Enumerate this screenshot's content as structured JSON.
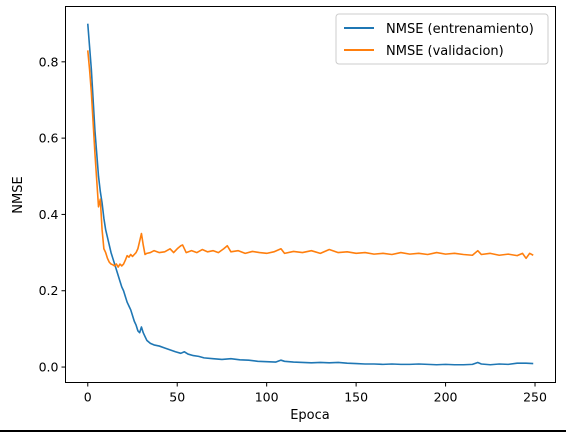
{
  "chart_data": {
    "type": "line",
    "title": "",
    "xlabel": "Epoca",
    "ylabel": "NMSE",
    "xlim": [
      -12.45,
      261.45
    ],
    "ylim": [
      -0.0405,
      0.945
    ],
    "xticks": [
      0,
      50,
      100,
      150,
      200,
      250
    ],
    "xtick_labels": [
      "0",
      "50",
      "100",
      "150",
      "200",
      "250"
    ],
    "yticks": [
      0.0,
      0.2,
      0.4,
      0.6,
      0.8
    ],
    "ytick_labels": [
      "0.0",
      "0.2",
      "0.4",
      "0.6",
      "0.8"
    ],
    "grid": false,
    "legend_position": "top-right",
    "series": [
      {
        "name": "NMSE (entrenamiento)",
        "color": "#1f77b4",
        "points": [
          [
            0,
            0.9
          ],
          [
            1,
            0.84
          ],
          [
            2,
            0.78
          ],
          [
            3,
            0.7
          ],
          [
            4,
            0.62
          ],
          [
            5,
            0.56
          ],
          [
            6,
            0.5
          ],
          [
            7,
            0.46
          ],
          [
            8,
            0.43
          ],
          [
            9,
            0.39
          ],
          [
            10,
            0.36
          ],
          [
            11,
            0.34
          ],
          [
            12,
            0.32
          ],
          [
            13,
            0.3
          ],
          [
            14,
            0.285
          ],
          [
            15,
            0.27
          ],
          [
            16,
            0.255
          ],
          [
            17,
            0.24
          ],
          [
            18,
            0.225
          ],
          [
            19,
            0.21
          ],
          [
            20,
            0.2
          ],
          [
            21,
            0.185
          ],
          [
            22,
            0.17
          ],
          [
            23,
            0.16
          ],
          [
            24,
            0.15
          ],
          [
            25,
            0.135
          ],
          [
            26,
            0.12
          ],
          [
            27,
            0.11
          ],
          [
            28,
            0.095
          ],
          [
            29,
            0.09
          ],
          [
            30,
            0.105
          ],
          [
            31,
            0.09
          ],
          [
            32,
            0.08
          ],
          [
            33,
            0.07
          ],
          [
            35,
            0.062
          ],
          [
            37,
            0.058
          ],
          [
            40,
            0.055
          ],
          [
            43,
            0.05
          ],
          [
            46,
            0.045
          ],
          [
            49,
            0.04
          ],
          [
            52,
            0.036
          ],
          [
            54,
            0.04
          ],
          [
            56,
            0.034
          ],
          [
            59,
            0.03
          ],
          [
            62,
            0.028
          ],
          [
            65,
            0.024
          ],
          [
            70,
            0.022
          ],
          [
            75,
            0.02
          ],
          [
            80,
            0.022
          ],
          [
            85,
            0.019
          ],
          [
            90,
            0.018
          ],
          [
            95,
            0.015
          ],
          [
            100,
            0.014
          ],
          [
            105,
            0.013
          ],
          [
            108,
            0.018
          ],
          [
            110,
            0.015
          ],
          [
            115,
            0.013
          ],
          [
            120,
            0.012
          ],
          [
            125,
            0.011
          ],
          [
            130,
            0.012
          ],
          [
            135,
            0.011
          ],
          [
            140,
            0.012
          ],
          [
            145,
            0.01
          ],
          [
            150,
            0.009
          ],
          [
            155,
            0.008
          ],
          [
            160,
            0.008
          ],
          [
            165,
            0.007
          ],
          [
            170,
            0.008
          ],
          [
            175,
            0.007
          ],
          [
            180,
            0.007
          ],
          [
            185,
            0.008
          ],
          [
            190,
            0.007
          ],
          [
            195,
            0.006
          ],
          [
            200,
            0.007
          ],
          [
            205,
            0.006
          ],
          [
            210,
            0.006
          ],
          [
            215,
            0.007
          ],
          [
            218,
            0.012
          ],
          [
            220,
            0.008
          ],
          [
            225,
            0.006
          ],
          [
            230,
            0.008
          ],
          [
            235,
            0.007
          ],
          [
            240,
            0.01
          ],
          [
            245,
            0.01
          ],
          [
            249,
            0.009
          ]
        ]
      },
      {
        "name": "NMSE (validacion)",
        "color": "#ff7f0e",
        "points": [
          [
            0,
            0.83
          ],
          [
            1,
            0.78
          ],
          [
            2,
            0.72
          ],
          [
            3,
            0.64
          ],
          [
            4,
            0.56
          ],
          [
            5,
            0.49
          ],
          [
            6,
            0.42
          ],
          [
            7,
            0.44
          ],
          [
            8,
            0.36
          ],
          [
            9,
            0.31
          ],
          [
            10,
            0.3
          ],
          [
            11,
            0.285
          ],
          [
            12,
            0.275
          ],
          [
            13,
            0.27
          ],
          [
            14,
            0.268
          ],
          [
            15,
            0.265
          ],
          [
            16,
            0.27
          ],
          [
            17,
            0.262
          ],
          [
            18,
            0.27
          ],
          [
            19,
            0.265
          ],
          [
            20,
            0.27
          ],
          [
            21,
            0.28
          ],
          [
            22,
            0.292
          ],
          [
            23,
            0.288
          ],
          [
            24,
            0.295
          ],
          [
            25,
            0.29
          ],
          [
            26,
            0.295
          ],
          [
            27,
            0.3
          ],
          [
            28,
            0.31
          ],
          [
            29,
            0.33
          ],
          [
            30,
            0.35
          ],
          [
            31,
            0.32
          ],
          [
            32,
            0.295
          ],
          [
            33,
            0.298
          ],
          [
            35,
            0.3
          ],
          [
            37,
            0.305
          ],
          [
            40,
            0.3
          ],
          [
            43,
            0.302
          ],
          [
            46,
            0.31
          ],
          [
            48,
            0.3
          ],
          [
            50,
            0.31
          ],
          [
            52,
            0.318
          ],
          [
            53,
            0.32
          ],
          [
            55,
            0.3
          ],
          [
            58,
            0.305
          ],
          [
            61,
            0.3
          ],
          [
            64,
            0.308
          ],
          [
            67,
            0.302
          ],
          [
            70,
            0.305
          ],
          [
            73,
            0.3
          ],
          [
            76,
            0.31
          ],
          [
            78,
            0.318
          ],
          [
            80,
            0.302
          ],
          [
            84,
            0.305
          ],
          [
            88,
            0.298
          ],
          [
            92,
            0.303
          ],
          [
            96,
            0.3
          ],
          [
            100,
            0.298
          ],
          [
            104,
            0.302
          ],
          [
            108,
            0.31
          ],
          [
            110,
            0.298
          ],
          [
            115,
            0.303
          ],
          [
            120,
            0.3
          ],
          [
            125,
            0.305
          ],
          [
            130,
            0.298
          ],
          [
            135,
            0.308
          ],
          [
            140,
            0.3
          ],
          [
            145,
            0.302
          ],
          [
            150,
            0.298
          ],
          [
            155,
            0.3
          ],
          [
            160,
            0.296
          ],
          [
            165,
            0.298
          ],
          [
            170,
            0.295
          ],
          [
            175,
            0.3
          ],
          [
            180,
            0.296
          ],
          [
            185,
            0.298
          ],
          [
            190,
            0.295
          ],
          [
            195,
            0.3
          ],
          [
            200,
            0.296
          ],
          [
            205,
            0.298
          ],
          [
            210,
            0.295
          ],
          [
            215,
            0.293
          ],
          [
            218,
            0.305
          ],
          [
            220,
            0.295
          ],
          [
            225,
            0.298
          ],
          [
            230,
            0.293
          ],
          [
            235,
            0.296
          ],
          [
            240,
            0.292
          ],
          [
            243,
            0.298
          ],
          [
            245,
            0.285
          ],
          [
            247,
            0.298
          ],
          [
            249,
            0.293
          ]
        ]
      }
    ]
  }
}
